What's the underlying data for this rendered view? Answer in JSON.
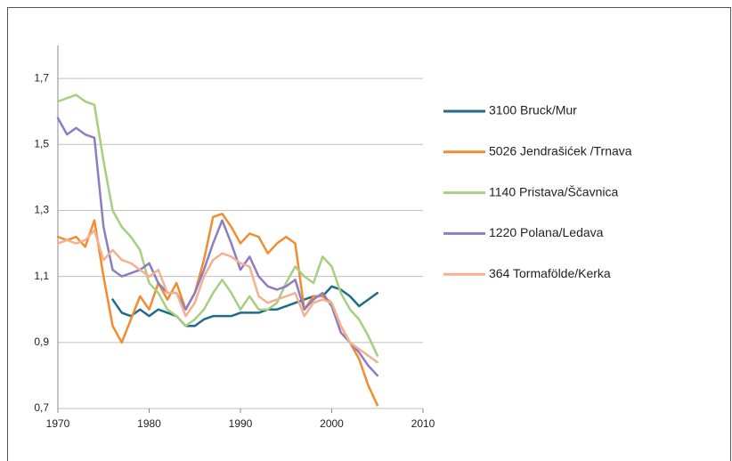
{
  "chart_data": {
    "type": "line",
    "x": [
      1970,
      1971,
      1972,
      1973,
      1974,
      1975,
      1976,
      1977,
      1978,
      1979,
      1980,
      1981,
      1982,
      1983,
      1984,
      1985,
      1986,
      1987,
      1988,
      1989,
      1990,
      1991,
      1992,
      1993,
      1994,
      1995,
      1996,
      1997,
      1998,
      1999,
      2000,
      2001,
      2002,
      2003,
      2004,
      2005
    ],
    "series": [
      {
        "name": "3100 Bruck/Mur",
        "color": "#1f6b8c",
        "values": [
          null,
          null,
          null,
          null,
          null,
          null,
          1.03,
          0.99,
          0.98,
          1.0,
          0.98,
          1.0,
          0.99,
          0.98,
          0.95,
          0.95,
          0.97,
          0.98,
          0.98,
          0.98,
          0.99,
          0.99,
          0.99,
          1.0,
          1.0,
          1.01,
          1.02,
          1.03,
          1.04,
          1.04,
          1.07,
          1.06,
          1.04,
          1.01,
          1.03,
          1.05
        ]
      },
      {
        "name": "5026 Jendrašićek /Trnava",
        "color": "#f28c30",
        "values": [
          1.22,
          1.21,
          1.22,
          1.19,
          1.27,
          1.1,
          0.95,
          0.9,
          0.97,
          1.04,
          1.0,
          1.08,
          1.03,
          1.08,
          1.0,
          1.05,
          1.15,
          1.28,
          1.29,
          1.25,
          1.2,
          1.23,
          1.22,
          1.17,
          1.2,
          1.22,
          1.2,
          1.0,
          1.04,
          1.04,
          1.02,
          0.95,
          0.9,
          0.85,
          0.77,
          0.71
        ]
      },
      {
        "name": "1140 Pristava/Ščavnica",
        "color": "#a6cf7f",
        "values": [
          1.63,
          1.64,
          1.65,
          1.63,
          1.62,
          1.45,
          1.3,
          1.25,
          1.22,
          1.18,
          1.08,
          1.05,
          1.0,
          0.98,
          0.95,
          0.97,
          1.0,
          1.05,
          1.09,
          1.05,
          1.0,
          1.04,
          1.0,
          1.0,
          1.02,
          1.08,
          1.13,
          1.1,
          1.08,
          1.16,
          1.13,
          1.05,
          1.0,
          0.97,
          0.92,
          0.86
        ]
      },
      {
        "name": "1220 Polana/Ledava",
        "color": "#8e7cc3",
        "values": [
          1.58,
          1.53,
          1.55,
          1.53,
          1.52,
          1.25,
          1.12,
          1.1,
          1.11,
          1.12,
          1.14,
          1.08,
          1.05,
          1.05,
          1.0,
          1.05,
          1.12,
          1.2,
          1.27,
          1.2,
          1.12,
          1.16,
          1.1,
          1.07,
          1.06,
          1.07,
          1.09,
          1.0,
          1.03,
          1.05,
          1.01,
          0.93,
          0.9,
          0.87,
          0.83,
          0.8
        ]
      },
      {
        "name": "364 Tormafölde/Kerka",
        "color": "#f4b08f",
        "values": [
          1.2,
          1.21,
          1.2,
          1.21,
          1.24,
          1.15,
          1.18,
          1.15,
          1.14,
          1.12,
          1.1,
          1.12,
          1.05,
          1.05,
          0.98,
          1.02,
          1.1,
          1.15,
          1.17,
          1.16,
          1.14,
          1.13,
          1.04,
          1.02,
          1.03,
          1.04,
          1.05,
          0.98,
          1.02,
          1.03,
          1.02,
          0.95,
          0.9,
          0.88,
          0.86,
          0.84
        ]
      }
    ],
    "xlim": [
      1970,
      2010
    ],
    "xticks": [
      1970,
      1980,
      1990,
      2000,
      2010
    ],
    "ylim": [
      0.7,
      1.8
    ],
    "yticks": [
      {
        "value": 0.7,
        "label": "0,7"
      },
      {
        "value": 0.9,
        "label": "0,9"
      },
      {
        "value": 1.1,
        "label": "1,1"
      },
      {
        "value": 1.3,
        "label": "1,3"
      },
      {
        "value": 1.5,
        "label": "1,5"
      },
      {
        "value": 1.7,
        "label": "1,7"
      }
    ],
    "grid": true,
    "legend": "right"
  }
}
